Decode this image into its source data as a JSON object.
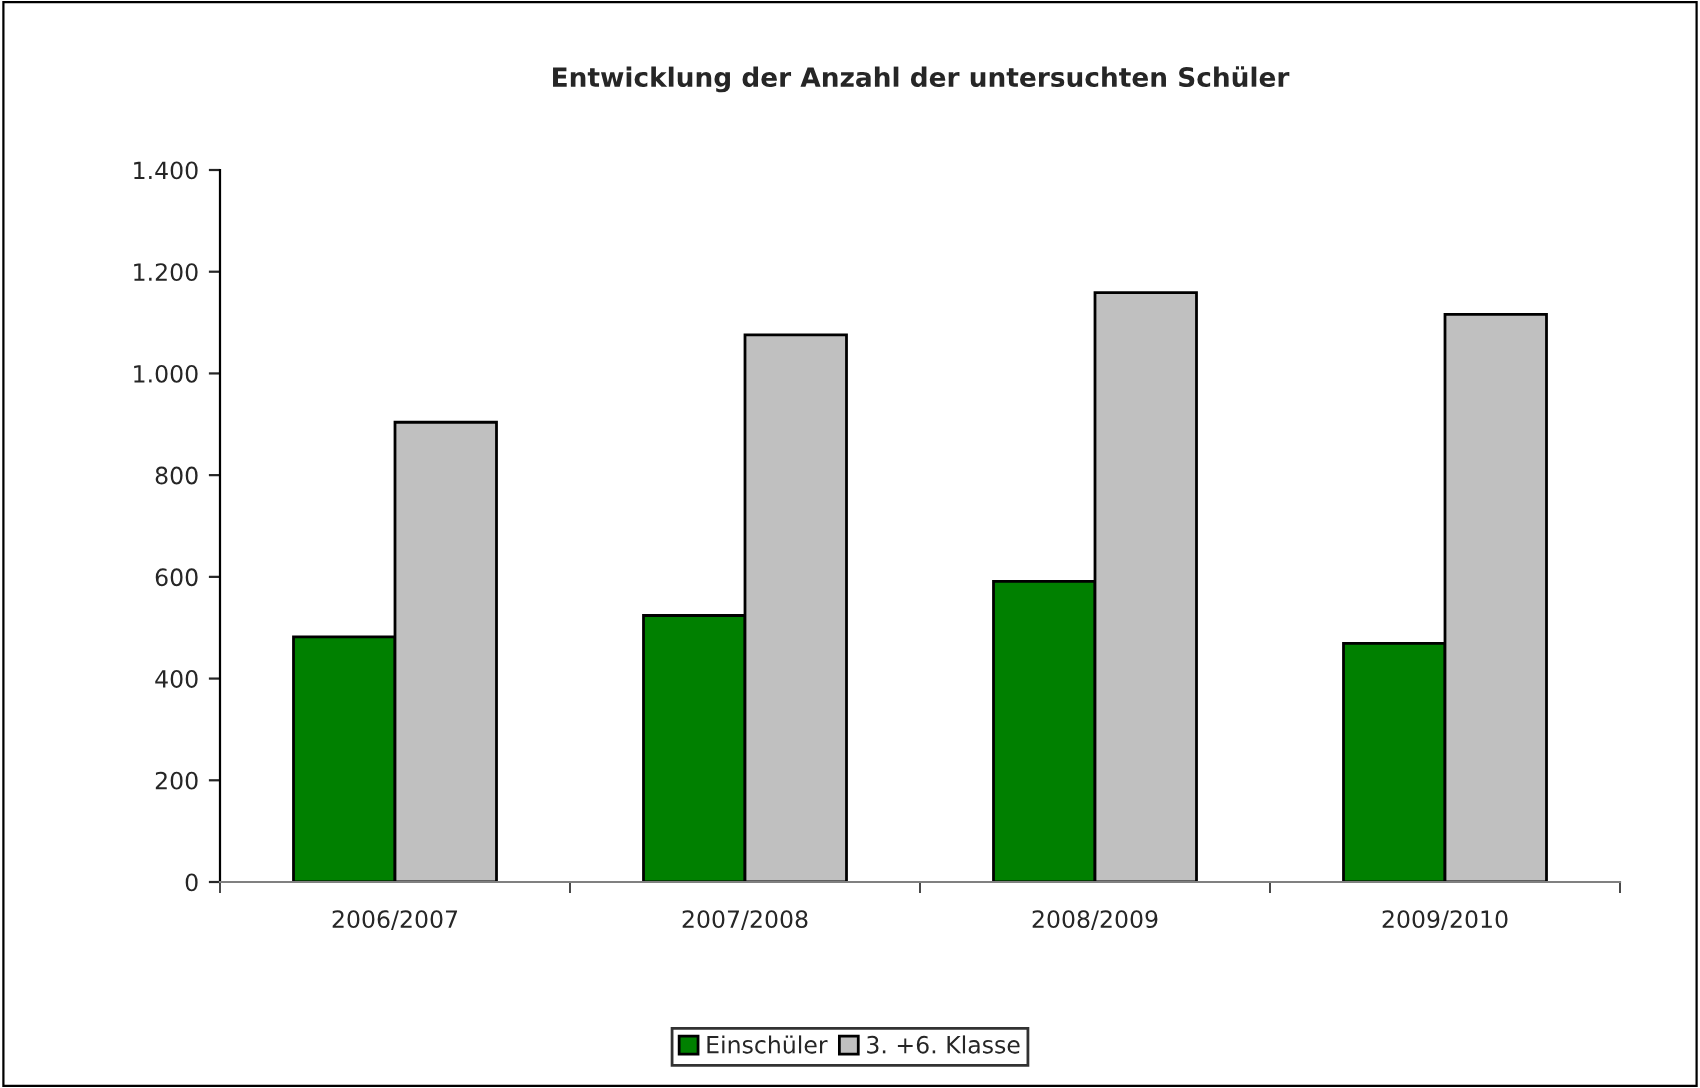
{
  "chart_data": {
    "type": "bar",
    "title": "Entwicklung der Anzahl der untersuchten Schüler",
    "categories": [
      "2006/2007",
      "2007/2008",
      "2008/2009",
      "2009/2010"
    ],
    "series": [
      {
        "name": "Einschüler",
        "color": "#008000",
        "values": [
          482,
          524,
          591,
          469
        ]
      },
      {
        "name": "3. +6. Klasse",
        "color": "#c0c0c0",
        "values": [
          904,
          1076,
          1159,
          1116
        ]
      }
    ],
    "ylim": [
      0,
      1400
    ],
    "yticks": [
      {
        "value": 0,
        "label": "0"
      },
      {
        "value": 200,
        "label": "200"
      },
      {
        "value": 400,
        "label": "400"
      },
      {
        "value": 600,
        "label": "600"
      },
      {
        "value": 800,
        "label": "800"
      },
      {
        "value": 1000,
        "label": "1.000"
      },
      {
        "value": 1200,
        "label": "1.200"
      },
      {
        "value": 1400,
        "label": "1.400"
      }
    ],
    "grid": false,
    "legend": "bottom"
  }
}
